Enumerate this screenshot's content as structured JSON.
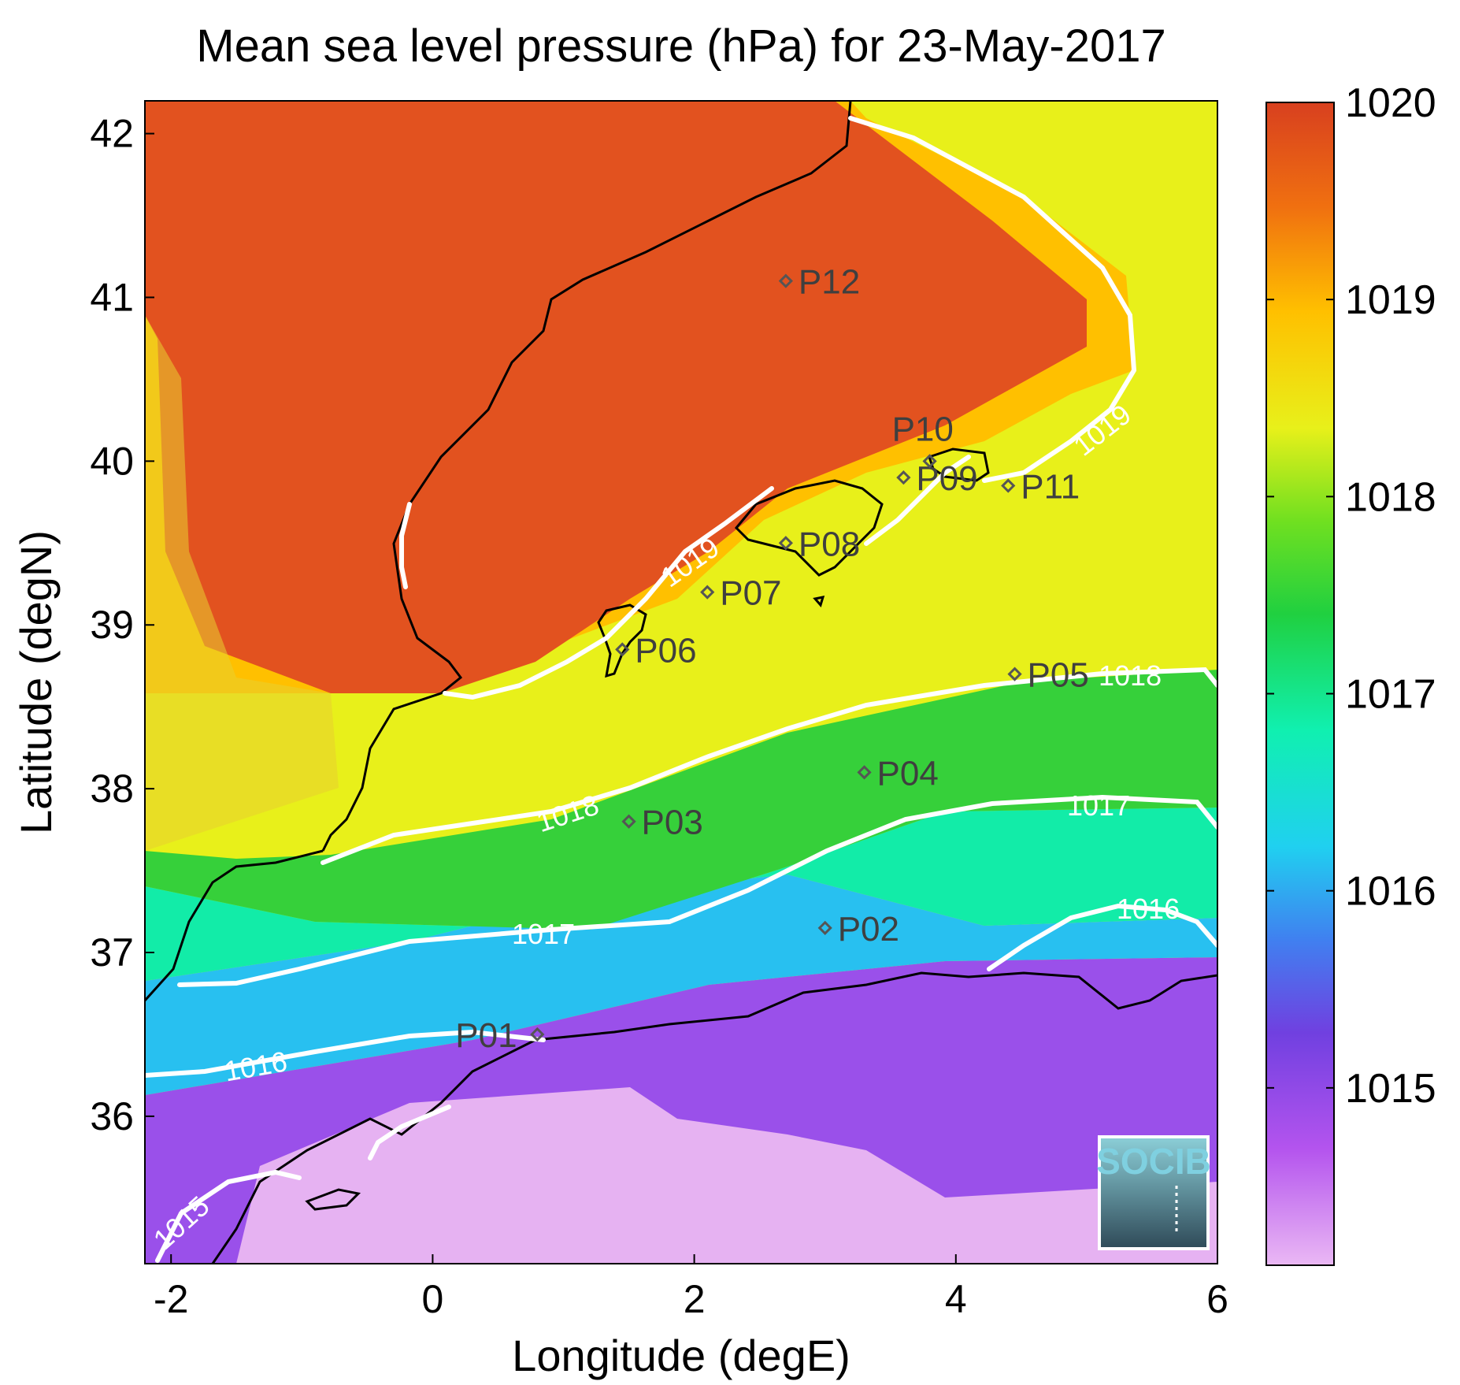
{
  "title": "Mean sea level pressure (hPa) for 23-May-2017",
  "x_axis": {
    "label": "Longitude (degE)",
    "ticks": [
      "-2",
      "0",
      "2",
      "4",
      "6"
    ]
  },
  "y_axis": {
    "label": "Latitude (degN)",
    "ticks": [
      "36",
      "37",
      "38",
      "39",
      "40",
      "41",
      "42"
    ]
  },
  "colorbar": {
    "ticks": [
      "1015",
      "1016",
      "1017",
      "1018",
      "1019",
      "1020"
    ],
    "range": [
      1014.1,
      1020.0
    ]
  },
  "domain": {
    "lon": [
      -2.2,
      6.0
    ],
    "lat": [
      35.1,
      42.2
    ]
  },
  "stations": [
    {
      "id": "P01",
      "lon": 0.8,
      "lat": 36.5
    },
    {
      "id": "P02",
      "lon": 3.0,
      "lat": 37.15
    },
    {
      "id": "P03",
      "lon": 1.5,
      "lat": 37.8
    },
    {
      "id": "P04",
      "lon": 3.3,
      "lat": 38.1
    },
    {
      "id": "P05",
      "lon": 4.45,
      "lat": 38.7
    },
    {
      "id": "P06",
      "lon": 1.45,
      "lat": 38.85
    },
    {
      "id": "P07",
      "lon": 2.1,
      "lat": 39.2
    },
    {
      "id": "P08",
      "lon": 2.7,
      "lat": 39.5
    },
    {
      "id": "P09",
      "lon": 3.6,
      "lat": 39.9
    },
    {
      "id": "P10",
      "lon": 3.8,
      "lat": 40.0
    },
    {
      "id": "P11",
      "lon": 4.4,
      "lat": 39.85
    },
    {
      "id": "P12",
      "lon": 2.7,
      "lat": 41.1
    }
  ],
  "contour_labels": [
    "1015",
    "1016",
    "1016",
    "1017",
    "1017",
    "1018",
    "1018",
    "1019",
    "1019"
  ],
  "logo": {
    "text": "SOCIB"
  },
  "colors": {
    "c1020": "#d8481f",
    "c1019": "#ffc000",
    "c1018_5": "#e8f01a",
    "c1018": "#33d433",
    "c1017": "#10f0b0",
    "c1016": "#2ab8f0",
    "c1015": "#7040e0",
    "c1014": "#e8b0f0",
    "contour": "#ffffff",
    "coast": "#000000",
    "station": "#555555"
  }
}
